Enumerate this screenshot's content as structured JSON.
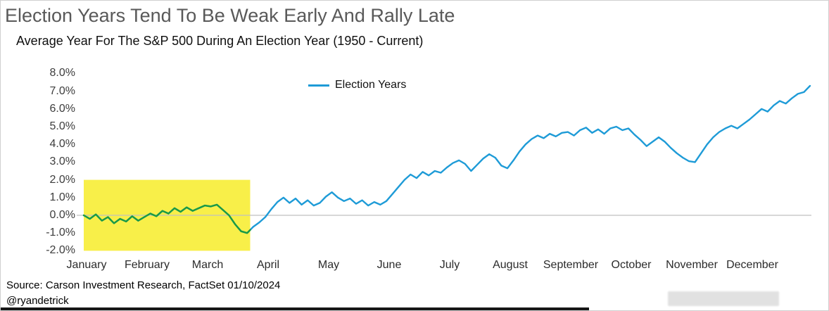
{
  "header": {
    "title": "Election Years Tend To Be Weak Early And Rally Late",
    "subtitle": "Average Year For The S&P 500 During An Election Year (1950 - Current)"
  },
  "legend": {
    "label": "Election Years"
  },
  "footer": {
    "source": "Source: Carson Investment Research, FactSet 01/10/2024",
    "handle": "@ryandetrick"
  },
  "colors": {
    "line": "#1e9bd7",
    "line_in_highlight": "#1b9a43",
    "highlight": "#f8ef49",
    "zero_line": "#c0c0c0",
    "title": "#595959"
  },
  "chart_data": {
    "type": "line",
    "title": "Election Years Tend To Be Weak Early And Rally Late",
    "subtitle": "Average Year For The S&P 500 During An Election Year (1950 - Current)",
    "xlabel": "",
    "ylabel": "",
    "legend": [
      "Election Years"
    ],
    "legend_position": "top-center",
    "grid": "zero-line-only",
    "ylim": [
      -2.0,
      8.0
    ],
    "yticks": [
      "8.0%",
      "7.0%",
      "6.0%",
      "5.0%",
      "4.0%",
      "3.0%",
      "2.0%",
      "1.0%",
      "0.0%",
      "-1.0%",
      "-2.0%"
    ],
    "ytick_values": [
      8,
      7,
      6,
      5,
      4,
      3,
      2,
      1,
      0,
      -1,
      -2
    ],
    "categories": [
      "January",
      "February",
      "March",
      "April",
      "May",
      "June",
      "July",
      "August",
      "September",
      "October",
      "November",
      "December"
    ],
    "x_unit": "months (0 = Jan 1, fraction of month)",
    "x_start": 0,
    "x_step": 0.1,
    "values": [
      0.0,
      -0.2,
      0.05,
      -0.3,
      -0.1,
      -0.45,
      -0.2,
      -0.35,
      -0.05,
      -0.3,
      -0.1,
      0.1,
      -0.05,
      0.25,
      0.1,
      0.4,
      0.2,
      0.45,
      0.25,
      0.4,
      0.55,
      0.5,
      0.6,
      0.3,
      0.0,
      -0.5,
      -0.9,
      -1.0,
      -0.65,
      -0.4,
      -0.1,
      0.35,
      0.75,
      1.0,
      0.7,
      0.95,
      0.6,
      0.85,
      0.55,
      0.7,
      1.05,
      1.3,
      1.0,
      0.8,
      0.95,
      0.65,
      0.85,
      0.55,
      0.75,
      0.6,
      0.8,
      1.2,
      1.6,
      2.0,
      2.3,
      2.1,
      2.45,
      2.25,
      2.5,
      2.4,
      2.7,
      2.95,
      3.1,
      2.9,
      2.5,
      2.85,
      3.2,
      3.45,
      3.25,
      2.8,
      2.65,
      3.1,
      3.6,
      4.0,
      4.3,
      4.5,
      4.35,
      4.6,
      4.45,
      4.65,
      4.7,
      4.5,
      4.8,
      4.95,
      4.65,
      4.85,
      4.6,
      4.9,
      5.0,
      4.8,
      4.9,
      4.55,
      4.25,
      3.9,
      4.15,
      4.4,
      4.15,
      3.8,
      3.5,
      3.25,
      3.05,
      3.0,
      3.5,
      4.0,
      4.4,
      4.7,
      4.9,
      5.05,
      4.9,
      5.15,
      5.4,
      5.7,
      6.0,
      5.85,
      6.2,
      6.45,
      6.3,
      6.6,
      6.85,
      6.95,
      7.3
    ],
    "highlight_region": {
      "x_from_month": 0,
      "x_to_month": 2.75,
      "y_from": -2.0,
      "y_to": 2.0,
      "color": "#f8ef49",
      "meaning": "weak early period (January - late March)"
    }
  }
}
